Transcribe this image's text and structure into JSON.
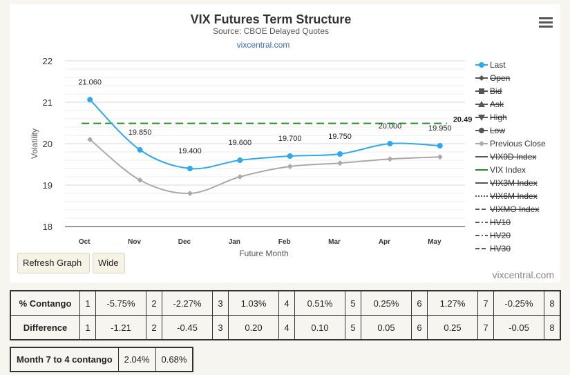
{
  "chart": {
    "title": "VIX Futures Term Structure",
    "subtitle": "Source: CBOE Delayed Quotes",
    "link": "vixcentral.com",
    "credits": "vixcentral.com",
    "colors": {
      "last": "#2ea8ec",
      "prev": "#a9a9a9",
      "vix": "#1f8f1f"
    }
  },
  "chart_data": {
    "type": "line",
    "categories": [
      "Oct",
      "Nov",
      "Dec",
      "Jan",
      "Feb",
      "Mar",
      "Apr",
      "May"
    ],
    "xlabel": "Future Month",
    "ylabel": "Volatility",
    "ylim": [
      18,
      22
    ],
    "yticks": [
      "18",
      "19",
      "20",
      "21",
      "22"
    ],
    "grid": true,
    "legend_position": "right",
    "series": [
      {
        "name": "Last",
        "values": [
          21.06,
          19.85,
          19.4,
          19.6,
          19.7,
          19.75,
          20.0,
          19.95
        ],
        "labels": [
          "21.060",
          "19.850",
          "19.400",
          "19.600",
          "19.700",
          "19.750",
          "20.000",
          "19.950"
        ]
      },
      {
        "name": "Previous Close",
        "values": [
          20.1,
          19.12,
          18.8,
          19.2,
          19.45,
          19.53,
          19.63,
          19.68
        ]
      },
      {
        "name": "VIX Index",
        "value": 20.49,
        "label": "20.49"
      }
    ],
    "legend": [
      {
        "label": "Last",
        "marker": "circle",
        "line": "solid",
        "color": "#2ea8ec",
        "enabled": true
      },
      {
        "label": "Open",
        "marker": "diamond",
        "line": "solid",
        "color": "#555555",
        "enabled": false
      },
      {
        "label": "Bid",
        "marker": "square",
        "line": "solid",
        "color": "#555555",
        "enabled": false
      },
      {
        "label": "Ask",
        "marker": "triangle",
        "line": "solid",
        "color": "#555555",
        "enabled": false
      },
      {
        "label": "High",
        "marker": "triangle-down",
        "line": "solid",
        "color": "#555555",
        "enabled": false
      },
      {
        "label": "Low",
        "marker": "circle",
        "line": "solid",
        "color": "#555555",
        "enabled": false
      },
      {
        "label": "Previous Close",
        "marker": "diamond",
        "line": "solid",
        "color": "#a9a9a9",
        "enabled": true
      },
      {
        "label": "VIX9D Index",
        "marker": "none",
        "line": "solid",
        "color": "#555555",
        "enabled": false
      },
      {
        "label": "VIX Index",
        "marker": "none",
        "line": "solid",
        "color": "#1f8f1f",
        "enabled": true
      },
      {
        "label": "VIX3M Index",
        "marker": "none",
        "line": "solid",
        "color": "#555555",
        "enabled": false
      },
      {
        "label": "VIX6M Index",
        "marker": "none",
        "line": "dotted",
        "color": "#555555",
        "enabled": false
      },
      {
        "label": "VIXMO Index",
        "marker": "none",
        "line": "dashed",
        "color": "#555555",
        "enabled": false
      },
      {
        "label": "HV10",
        "marker": "none",
        "line": "dashdot",
        "color": "#555555",
        "enabled": false
      },
      {
        "label": "HV20",
        "marker": "none",
        "line": "dashdot",
        "color": "#555555",
        "enabled": false
      },
      {
        "label": "HV30",
        "marker": "none",
        "line": "dashed",
        "color": "#555555",
        "enabled": false
      }
    ]
  },
  "buttons": {
    "refresh": "Refresh Graph",
    "wide": "Wide"
  },
  "contango_table": {
    "rows": [
      {
        "label": "% Contango",
        "cells": [
          [
            "1",
            "-5.75%"
          ],
          [
            "2",
            "-2.27%"
          ],
          [
            "3",
            "1.03%"
          ],
          [
            "4",
            "0.51%"
          ],
          [
            "5",
            "0.25%"
          ],
          [
            "6",
            "1.27%"
          ],
          [
            "7",
            "-0.25%"
          ],
          [
            "8",
            ""
          ]
        ]
      },
      {
        "label": "Difference",
        "cells": [
          [
            "1",
            "-1.21"
          ],
          [
            "2",
            "-0.45"
          ],
          [
            "3",
            "0.20"
          ],
          [
            "4",
            "0.10"
          ],
          [
            "5",
            "0.05"
          ],
          [
            "6",
            "0.25"
          ],
          [
            "7",
            "-0.05"
          ],
          [
            "8",
            ""
          ]
        ]
      }
    ]
  },
  "summary_table": {
    "label": "Month 7 to 4 contango",
    "values": [
      "2.04%",
      "0.68%"
    ]
  }
}
